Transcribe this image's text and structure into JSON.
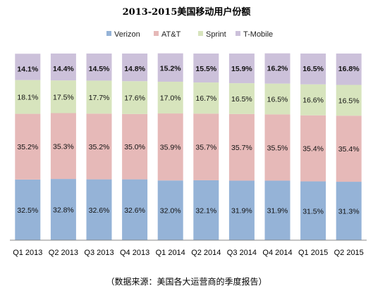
{
  "chart_data": {
    "type": "bar",
    "stacked": true,
    "title": "2013-2015美国移动用户份额",
    "source_note": "（数据来源：美国各大运营商的季度报告）",
    "categories": [
      "Q1 2013",
      "Q2 2013",
      "Q3 2013",
      "Q4 2013",
      "Q1 2014",
      "Q2 2014",
      "Q3 2014",
      "Q4 2014",
      "Q1 2015",
      "Q2 2015"
    ],
    "series": [
      {
        "name": "Verizon",
        "color": "#95b3d7",
        "values": [
          32.5,
          32.8,
          32.6,
          32.6,
          32.0,
          32.1,
          31.9,
          31.9,
          31.5,
          31.3
        ],
        "labels": [
          "32.5%",
          "32.8%",
          "32.6%",
          "32.6%",
          "32.0%",
          "32.1%",
          "31.9%",
          "31.9%",
          "31.5%",
          "31.3%"
        ]
      },
      {
        "name": "AT&T",
        "color": "#e6b9b8",
        "values": [
          35.2,
          35.3,
          35.2,
          35.0,
          35.9,
          35.7,
          35.7,
          35.5,
          35.4,
          35.4
        ],
        "labels": [
          "35.2%",
          "35.3%",
          "35.2%",
          "35.0%",
          "35.9%",
          "35.7%",
          "35.7%",
          "35.5%",
          "35.4%",
          "35.4%"
        ]
      },
      {
        "name": "Sprint",
        "color": "#d7e4bd",
        "values": [
          18.1,
          17.5,
          17.7,
          17.6,
          17.0,
          16.7,
          16.5,
          16.5,
          16.6,
          16.5
        ],
        "labels": [
          "18.1%",
          "17.5%",
          "17.7%",
          "17.6%",
          "17.0%",
          "16.7%",
          "16.5%",
          "16.5%",
          "16.6%",
          "16.5%"
        ]
      },
      {
        "name": "T-Mobile",
        "color": "#ccc1da",
        "values": [
          14.1,
          14.4,
          14.5,
          14.8,
          15.2,
          15.5,
          15.9,
          16.2,
          16.5,
          16.8
        ],
        "labels": [
          "14.1%",
          "14.4%",
          "14.5%",
          "14.8%",
          "15.2%",
          "15.5%",
          "15.9%",
          "16.2%",
          "16.5%",
          "16.8%"
        ]
      }
    ],
    "ylim": [
      0,
      100
    ],
    "legend_position": "top",
    "grid": false
  }
}
